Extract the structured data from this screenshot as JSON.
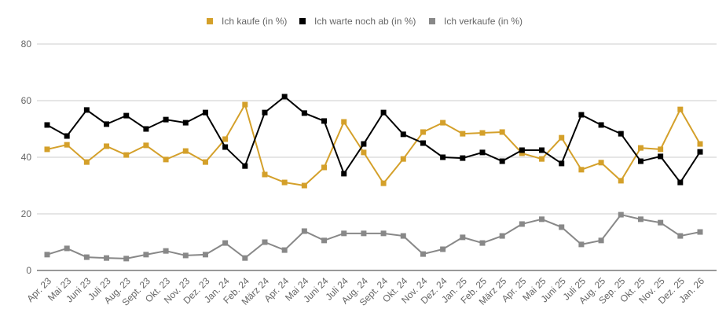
{
  "chart_data": {
    "type": "line",
    "title": "",
    "xlabel": "",
    "ylabel": "",
    "ylim": [
      0,
      80
    ],
    "yticks": [
      0,
      20,
      40,
      60,
      80
    ],
    "grid": true,
    "legend_position": "top",
    "categories": [
      "Apr. 23",
      "Mai 23",
      "Juni 23",
      "Juli 23",
      "Aug. 23",
      "Sept. 23",
      "Okt. 23",
      "Nov. 23",
      "Dez. 23",
      "Jan. 24",
      "Feb. 24",
      "März 24",
      "Apr. 24",
      "Mai 24",
      "Juni 24",
      "Juli 24",
      "Aug. 24",
      "Sept. 24",
      "Okt. 24",
      "Nov. 24",
      "Dez. 24",
      "Jan. 25",
      "Feb. 25",
      "März 25",
      "Apr. 25",
      "Mai 25",
      "Juni 25",
      "Juli 25",
      "Aug. 25",
      "Sep. 25",
      "Okt. 25",
      "Nov. 25",
      "Dez. 25",
      "Jan. 26"
    ],
    "series": [
      {
        "name": "Ich kaufe (in %)",
        "color": "#d4a02a",
        "values": [
          42.8,
          44.4,
          38.3,
          43.9,
          40.8,
          44.2,
          39.2,
          42.2,
          38.3,
          46.4,
          58.6,
          33.9,
          31.1,
          30.0,
          36.4,
          52.5,
          41.7,
          30.8,
          39.4,
          48.9,
          52.2,
          48.3,
          48.6,
          48.9,
          41.4,
          39.4,
          46.9,
          35.6,
          38.1,
          31.7,
          43.3,
          42.8,
          56.9,
          44.7
        ]
      },
      {
        "name": "Ich warte noch ab (in %)",
        "color": "#000000",
        "values": [
          51.4,
          47.5,
          56.7,
          51.7,
          54.7,
          50.0,
          53.3,
          52.2,
          55.8,
          43.6,
          36.9,
          55.8,
          61.4,
          55.6,
          52.8,
          34.2,
          44.7,
          55.8,
          48.1,
          45.0,
          40.0,
          39.7,
          41.7,
          38.6,
          42.5,
          42.5,
          37.8,
          55.0,
          51.4,
          48.3,
          38.6,
          40.3,
          31.1,
          41.9
        ]
      },
      {
        "name": "Ich verkaufe (in %)",
        "color": "#888888",
        "values": [
          5.6,
          7.8,
          4.7,
          4.4,
          4.2,
          5.6,
          6.9,
          5.3,
          5.6,
          9.7,
          4.4,
          10.0,
          7.2,
          13.9,
          10.6,
          13.1,
          13.1,
          13.1,
          12.2,
          5.8,
          7.5,
          11.7,
          9.7,
          12.2,
          16.4,
          18.1,
          15.3,
          9.2,
          10.6,
          19.7,
          18.1,
          16.9,
          12.2,
          13.6
        ]
      }
    ]
  }
}
